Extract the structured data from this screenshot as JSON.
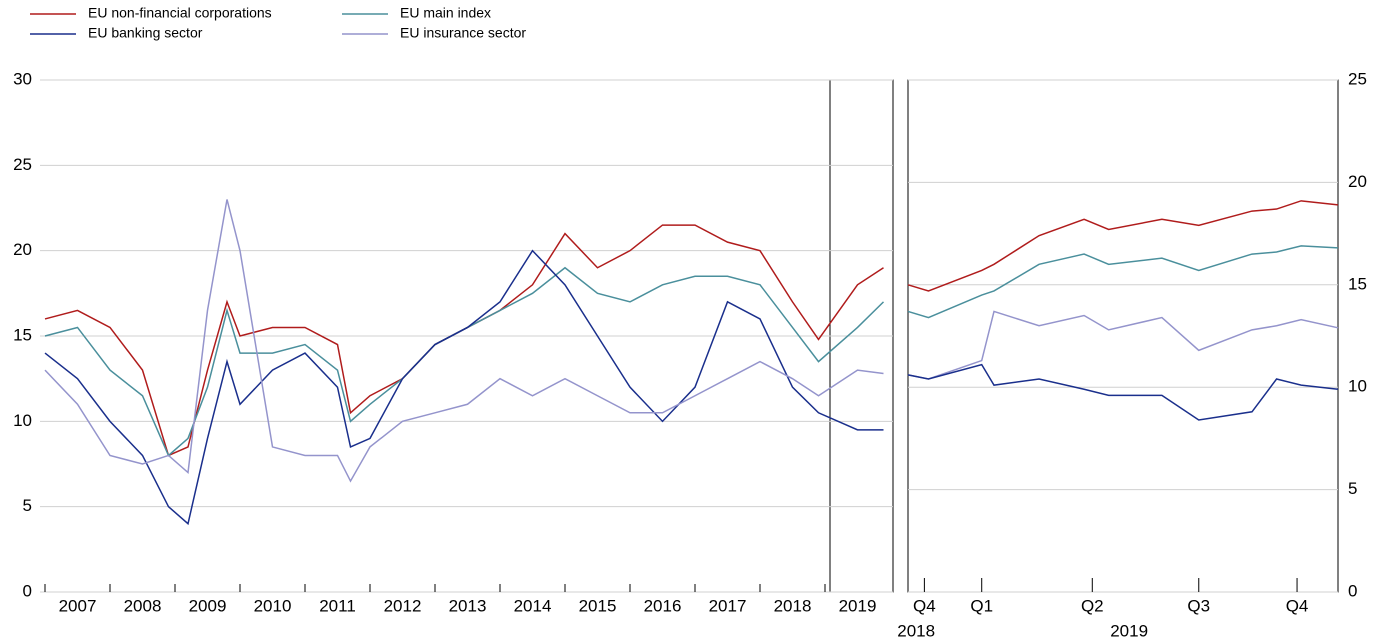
{
  "chart_data": [
    {
      "type": "line",
      "x": [
        2007.0,
        2007.5,
        2008.0,
        2008.5,
        2008.9,
        2009.2,
        2009.5,
        2009.8,
        2010.0,
        2010.5,
        2011.0,
        2011.5,
        2011.7,
        2012.0,
        2012.5,
        2013.0,
        2013.5,
        2014.0,
        2014.5,
        2015.0,
        2015.5,
        2016.0,
        2016.5,
        2017.0,
        2017.5,
        2018.0,
        2018.5,
        2018.9,
        2019.5,
        2019.9
      ],
      "xlim": [
        2007,
        2020
      ],
      "xticks": [
        2007,
        2008,
        2009,
        2010,
        2011,
        2012,
        2013,
        2014,
        2015,
        2016,
        2017,
        2018,
        2019
      ],
      "ylim": [
        0,
        30
      ],
      "yticks": [
        0,
        5,
        10,
        15,
        20,
        25,
        30
      ],
      "grid": true,
      "series": [
        {
          "name": "EU non-financial corporations",
          "color": "#b01c1c",
          "values": [
            16,
            16.5,
            15.5,
            13,
            8,
            8.5,
            13,
            17,
            15,
            15.5,
            15.5,
            14.5,
            10.5,
            11.5,
            12.5,
            14.5,
            15.5,
            16.5,
            18,
            21,
            19,
            20,
            21.5,
            21.5,
            20.5,
            20,
            17,
            14.8,
            18,
            19
          ]
        },
        {
          "name": "EU main index",
          "color": "#4a8f9c",
          "values": [
            15,
            15.5,
            13,
            11.5,
            8,
            9,
            12,
            16.5,
            14,
            14,
            14.5,
            13,
            10,
            11,
            12.5,
            14.5,
            15.5,
            16.5,
            17.5,
            19,
            17.5,
            17,
            18,
            18.5,
            18.5,
            18,
            15.5,
            13.5,
            15.5,
            17
          ]
        },
        {
          "name": "EU banking sector",
          "color": "#1a2f8c",
          "values": [
            14,
            12.5,
            10,
            8,
            5,
            4,
            9,
            13.5,
            11,
            13,
            14,
            12,
            8.5,
            9,
            12.5,
            14.5,
            15.5,
            17,
            20,
            18,
            15,
            12,
            10,
            12,
            17,
            16,
            12,
            10.5,
            9.5,
            9.5
          ]
        },
        {
          "name": "EU insurance sector",
          "color": "#9494cc",
          "values": [
            13,
            11,
            8,
            7.5,
            8,
            7,
            16.5,
            23,
            20,
            8.5,
            8,
            8,
            6.5,
            8.5,
            10,
            10.5,
            11,
            12.5,
            11.5,
            12.5,
            11.5,
            10.5,
            10.5,
            11.5,
            12.5,
            13.5,
            12.5,
            11.5,
            13,
            12.8
          ]
        }
      ]
    },
    {
      "type": "line",
      "x": [
        2018.9,
        2018.95,
        2019.08,
        2019.11,
        2019.22,
        2019.33,
        2019.39,
        2019.52,
        2019.61,
        2019.74,
        2019.8,
        2019.86,
        2019.95
      ],
      "xlim": [
        2018.9,
        2019.95
      ],
      "xticks": [
        {
          "value": 2018.94,
          "label": "Q4"
        },
        {
          "value": 2019.08,
          "label": "Q1"
        },
        {
          "value": 2019.35,
          "label": "Q2"
        },
        {
          "value": 2019.61,
          "label": "Q3"
        },
        {
          "value": 2019.85,
          "label": "Q4"
        }
      ],
      "year_labels": [
        {
          "value": 2018.92,
          "label": "2018"
        },
        {
          "value": 2019.44,
          "label": "2019"
        }
      ],
      "ylim": [
        0,
        25
      ],
      "yticks": [
        0,
        5,
        10,
        15,
        20,
        25
      ],
      "grid": true,
      "series": [
        {
          "color": "#b01c1c",
          "values": [
            15.0,
            14.7,
            15.7,
            16.0,
            17.4,
            18.2,
            17.7,
            18.2,
            17.9,
            18.6,
            18.7,
            19.1,
            18.9
          ]
        },
        {
          "color": "#4a8f9c",
          "values": [
            13.7,
            13.4,
            14.5,
            14.7,
            16.0,
            16.5,
            16.0,
            16.3,
            15.7,
            16.5,
            16.6,
            16.9,
            16.8
          ]
        },
        {
          "color": "#9494cc",
          "values": [
            10.6,
            10.4,
            11.3,
            13.7,
            13.0,
            13.5,
            12.8,
            13.4,
            11.8,
            12.8,
            13.0,
            13.3,
            12.9
          ]
        },
        {
          "color": "#1a2f8c",
          "values": [
            10.6,
            10.4,
            11.1,
            10.1,
            10.4,
            9.9,
            9.6,
            9.6,
            8.4,
            8.8,
            10.4,
            10.1,
            9.9
          ]
        }
      ]
    }
  ]
}
